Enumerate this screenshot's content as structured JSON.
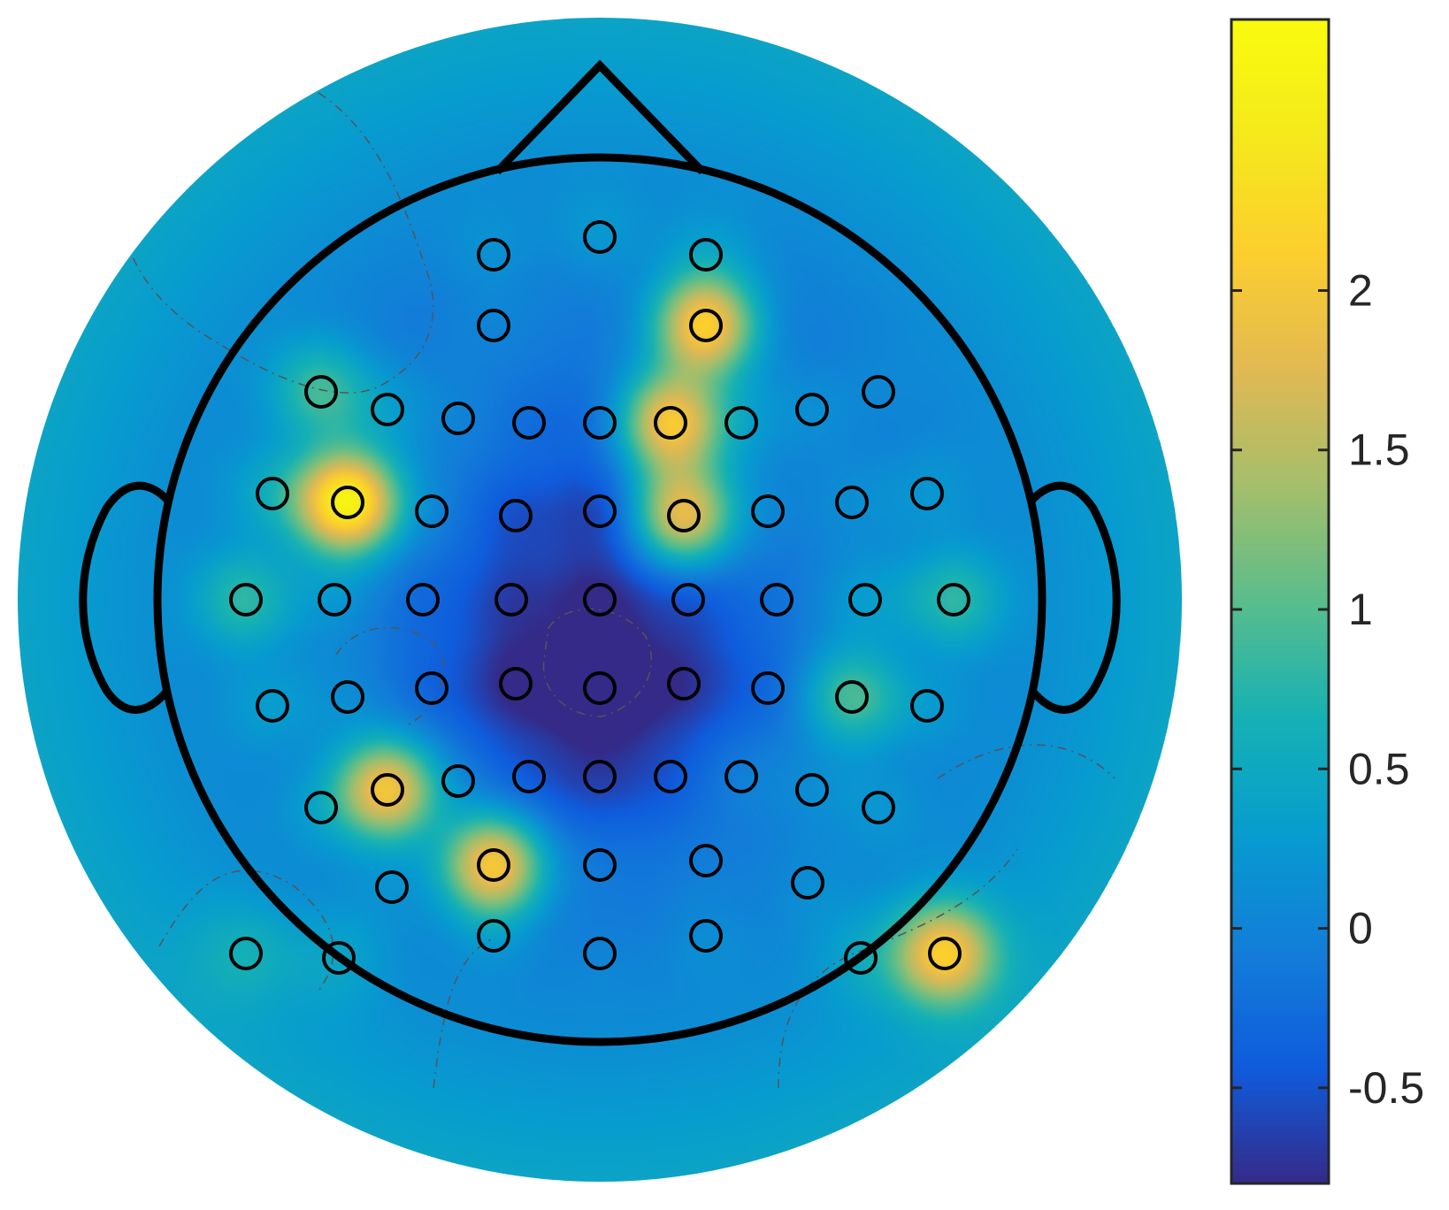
{
  "chart_data": {
    "type": "heatmap",
    "subtype": "eeg-topoplot",
    "title": "",
    "colormap": "parula",
    "colorbar": {
      "position": "right",
      "range": [
        -0.8,
        2.85
      ],
      "ticks": [
        -0.5,
        0,
        0.5,
        1,
        1.5,
        2
      ],
      "tick_labels": [
        "-0.5",
        "0",
        "0.5",
        "1",
        "1.5",
        "2"
      ]
    },
    "background_value": 0.5,
    "interior_value": -0.1,
    "contours": "dashed",
    "electrodes": [
      {
        "x": 0.0,
        "y": 0.82,
        "v": 0.2
      },
      {
        "x": -0.24,
        "y": 0.78,
        "v": 0.1
      },
      {
        "x": 0.24,
        "y": 0.78,
        "v": 0.2
      },
      {
        "x": -0.24,
        "y": 0.62,
        "v": 0.0
      },
      {
        "x": 0.24,
        "y": 0.62,
        "v": 2.2
      },
      {
        "x": -0.63,
        "y": 0.47,
        "v": 0.9
      },
      {
        "x": -0.48,
        "y": 0.43,
        "v": 0.2
      },
      {
        "x": -0.32,
        "y": 0.41,
        "v": 0.0
      },
      {
        "x": -0.16,
        "y": 0.4,
        "v": -0.2
      },
      {
        "x": 0.0,
        "y": 0.4,
        "v": -0.3
      },
      {
        "x": 0.16,
        "y": 0.4,
        "v": 2.1
      },
      {
        "x": 0.32,
        "y": 0.4,
        "v": 0.2
      },
      {
        "x": 0.48,
        "y": 0.43,
        "v": 0.1
      },
      {
        "x": 0.63,
        "y": 0.47,
        "v": 0.0
      },
      {
        "x": -0.74,
        "y": 0.24,
        "v": 0.4
      },
      {
        "x": -0.57,
        "y": 0.22,
        "v": 2.8
      },
      {
        "x": -0.38,
        "y": 0.2,
        "v": 0.0
      },
      {
        "x": -0.19,
        "y": 0.19,
        "v": -0.4
      },
      {
        "x": 0.0,
        "y": 0.2,
        "v": -0.5
      },
      {
        "x": 0.19,
        "y": 0.19,
        "v": 2.0
      },
      {
        "x": 0.38,
        "y": 0.2,
        "v": 0.0
      },
      {
        "x": 0.57,
        "y": 0.22,
        "v": 0.1
      },
      {
        "x": 0.74,
        "y": 0.24,
        "v": 0.2
      },
      {
        "x": -0.8,
        "y": 0.0,
        "v": 0.8
      },
      {
        "x": -0.6,
        "y": 0.0,
        "v": 0.2
      },
      {
        "x": -0.4,
        "y": 0.0,
        "v": -0.2
      },
      {
        "x": -0.2,
        "y": 0.0,
        "v": -0.4
      },
      {
        "x": 0.0,
        "y": 0.0,
        "v": -0.5
      },
      {
        "x": 0.2,
        "y": 0.0,
        "v": -0.3
      },
      {
        "x": 0.4,
        "y": 0.0,
        "v": -0.1
      },
      {
        "x": 0.6,
        "y": 0.0,
        "v": 0.3
      },
      {
        "x": 0.8,
        "y": 0.0,
        "v": 0.8
      },
      {
        "x": -0.74,
        "y": -0.24,
        "v": 0.3
      },
      {
        "x": -0.57,
        "y": -0.22,
        "v": 0.1
      },
      {
        "x": -0.38,
        "y": -0.2,
        "v": -0.2
      },
      {
        "x": -0.19,
        "y": -0.19,
        "v": -0.5
      },
      {
        "x": 0.0,
        "y": -0.2,
        "v": -0.8
      },
      {
        "x": 0.19,
        "y": -0.19,
        "v": -0.4
      },
      {
        "x": 0.38,
        "y": -0.2,
        "v": -0.2
      },
      {
        "x": 0.57,
        "y": -0.22,
        "v": 1.0
      },
      {
        "x": 0.74,
        "y": -0.24,
        "v": 0.2
      },
      {
        "x": -0.63,
        "y": -0.47,
        "v": 0.2
      },
      {
        "x": -0.48,
        "y": -0.43,
        "v": 2.1
      },
      {
        "x": -0.32,
        "y": -0.41,
        "v": 0.0
      },
      {
        "x": -0.16,
        "y": -0.4,
        "v": -0.2
      },
      {
        "x": 0.0,
        "y": -0.4,
        "v": -0.3
      },
      {
        "x": 0.16,
        "y": -0.4,
        "v": -0.2
      },
      {
        "x": 0.32,
        "y": -0.4,
        "v": 0.1
      },
      {
        "x": 0.48,
        "y": -0.43,
        "v": 0.1
      },
      {
        "x": 0.63,
        "y": -0.47,
        "v": 0.2
      },
      {
        "x": -0.47,
        "y": -0.65,
        "v": 0.1
      },
      {
        "x": -0.24,
        "y": -0.6,
        "v": 2.2
      },
      {
        "x": 0.0,
        "y": -0.6,
        "v": 0.0
      },
      {
        "x": 0.24,
        "y": -0.59,
        "v": 0.0
      },
      {
        "x": 0.47,
        "y": -0.64,
        "v": 0.1
      },
      {
        "x": -0.8,
        "y": -0.8,
        "v": 0.3
      },
      {
        "x": -0.59,
        "y": -0.81,
        "v": 0.2
      },
      {
        "x": -0.24,
        "y": -0.76,
        "v": 0.1
      },
      {
        "x": 0.0,
        "y": -0.8,
        "v": 0.0
      },
      {
        "x": 0.24,
        "y": -0.76,
        "v": 0.1
      },
      {
        "x": 0.59,
        "y": -0.81,
        "v": 0.2
      },
      {
        "x": 0.78,
        "y": -0.8,
        "v": 1.9
      }
    ]
  }
}
